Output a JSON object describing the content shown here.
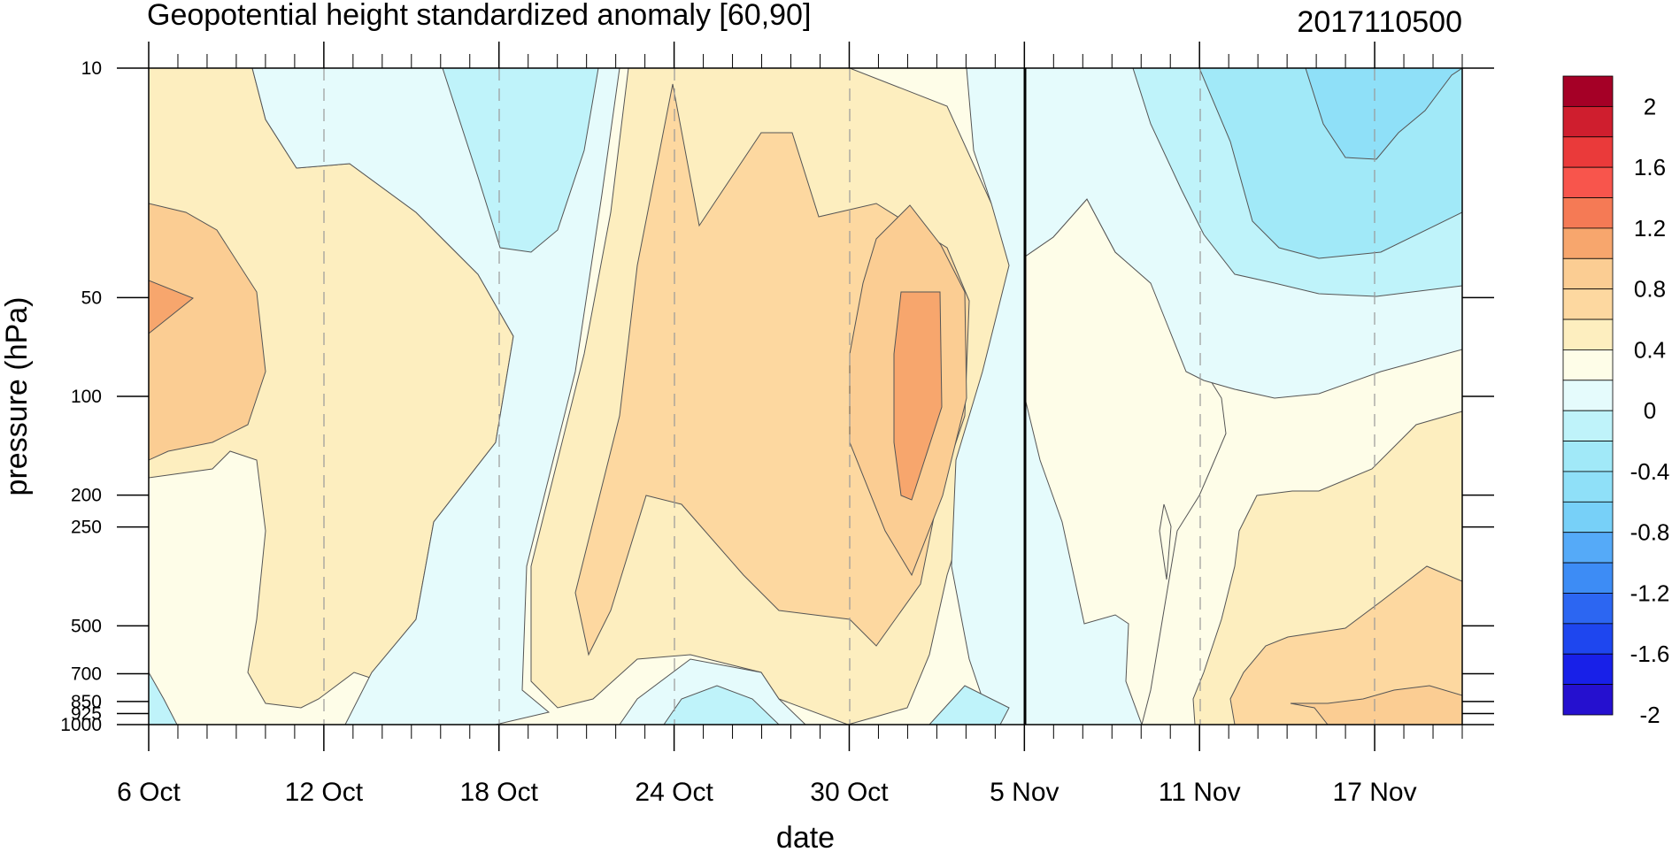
{
  "chart_data": {
    "type": "heatmap",
    "subtype": "filled-contour",
    "title": "Geopotential height standardized anomaly [60,90]",
    "right_label": "2017110500",
    "xlabel": "date",
    "ylabel": "pressure (hPa)",
    "x_ticks": [
      "6 Oct",
      "12 Oct",
      "18 Oct",
      "24 Oct",
      "30 Oct",
      "5 Nov",
      "11 Nov",
      "17 Nov"
    ],
    "x_range_days": [
      0,
      45
    ],
    "x_tick_days": [
      0,
      6,
      12,
      18,
      24,
      30,
      36,
      42
    ],
    "marker_line_day": 30,
    "y_ticks": [
      "10",
      "50",
      "100",
      "200",
      "250",
      "500",
      "700",
      "850",
      "925",
      "1000"
    ],
    "y_tick_values": [
      10,
      50,
      100,
      200,
      250,
      500,
      700,
      850,
      925,
      1000
    ],
    "y_range": [
      10,
      1000
    ],
    "y_scale": "log",
    "y_reversed": true,
    "colorbar_labels": [
      "2",
      "1.6",
      "1.2",
      "0.8",
      "0.4",
      "0",
      "-0.4",
      "-0.8",
      "-1.2",
      "-1.6",
      "-2"
    ],
    "colorbar_colors": [
      "#a50026",
      "#cf1e2e",
      "#ea3a3a",
      "#f8554c",
      "#f57a55",
      "#f7a66d",
      "#fbcd93",
      "#fdd8a0",
      "#fdeebf",
      "#fefde8",
      "#e5fbfc",
      "#bff3fa",
      "#a1e9f8",
      "#8fe0f8",
      "#77d0f8",
      "#55aaf8",
      "#3d8cf5",
      "#2c66f2",
      "#1e46ef",
      "#1820e8",
      "#2510cf"
    ],
    "anomaly_regions": [
      {
        "date": "6 Oct",
        "pressure_hPa": 50,
        "value": 0.6
      },
      {
        "date": "12 Oct",
        "pressure_hPa": 200,
        "value": 0.2
      },
      {
        "date": "19 Oct",
        "pressure_hPa": 20,
        "value": -0.4
      },
      {
        "date": "25 Oct",
        "pressure_hPa": 100,
        "value": 0.3
      },
      {
        "date": "31 Oct",
        "pressure_hPa": 100,
        "value": 0.6
      },
      {
        "date": "26 Oct",
        "pressure_hPa": 925,
        "value": -0.3
      },
      {
        "date": "17 Nov",
        "pressure_hPa": 20,
        "value": -0.8
      },
      {
        "date": "17 Nov",
        "pressure_hPa": 850,
        "value": 0.6
      }
    ]
  }
}
